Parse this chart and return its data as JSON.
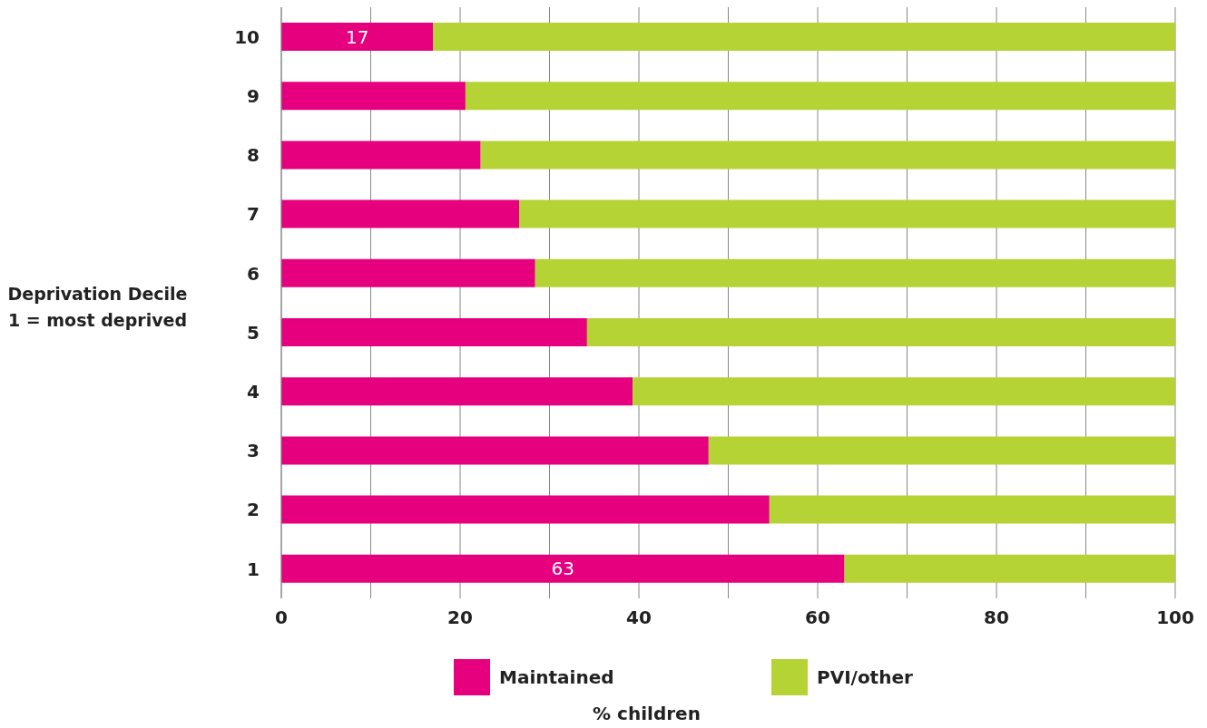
{
  "chart_data": {
    "type": "bar",
    "orientation": "horizontal",
    "stacked": true,
    "xlabel": "% children",
    "ylabel": "Deprivation Decile\n1 = most deprived",
    "categories": [
      "10",
      "9",
      "8",
      "7",
      "6",
      "5",
      "4",
      "3",
      "2",
      "1"
    ],
    "series": [
      {
        "name": "Maintained",
        "color": "#e6007e",
        "values": [
          17,
          20.6,
          22.3,
          26.6,
          28.4,
          34.2,
          39.3,
          47.8,
          54.6,
          63
        ],
        "value_labels": [
          "17",
          null,
          null,
          null,
          null,
          null,
          null,
          null,
          null,
          "63"
        ]
      },
      {
        "name": "PVI/other",
        "color": "#b5d334",
        "values": [
          83,
          79.4,
          77.7,
          73.4,
          71.6,
          65.8,
          60.7,
          52.2,
          45.4,
          37
        ]
      }
    ],
    "xlim": [
      0,
      100
    ],
    "xticks": [
      0,
      {
        "value": 10,
        "label": null
      },
      20,
      {
        "value": 30,
        "label": null
      },
      40,
      {
        "value": 50,
        "label": null
      },
      60,
      {
        "value": 70,
        "label": null
      },
      80,
      {
        "value": 90,
        "label": null
      },
      100
    ],
    "grid": "x",
    "legend": "bottom"
  }
}
